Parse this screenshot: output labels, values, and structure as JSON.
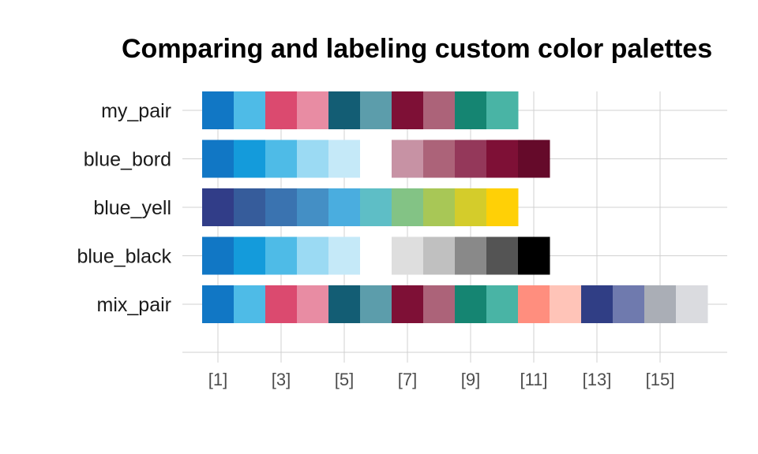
{
  "chart_data": {
    "type": "heatmap",
    "title": "Comparing and labeling custom color palettes",
    "x_tick_labels": [
      "[1]",
      "[3]",
      "[5]",
      "[7]",
      "[9]",
      "[11]",
      "[13]",
      "[15]"
    ],
    "x_tick_positions": [
      1,
      3,
      5,
      7,
      9,
      11,
      13,
      15
    ],
    "xlim": [
      0.5,
      17.5
    ],
    "grid": true,
    "palettes": [
      {
        "name": "my_pair",
        "colors": [
          "#1177C5",
          "#4EBBE7",
          "#DB4A6F",
          "#E88CA3",
          "#135D74",
          "#5C9DAB",
          "#7E1036",
          "#AC6379",
          "#158572",
          "#49B4A5"
        ]
      },
      {
        "name": "blue_bord",
        "colors": [
          "#1177C5",
          "#149BDB",
          "#4EBBE7",
          "#9BDAF3",
          "#C5E9F8",
          "#FFFFFF",
          "#C792A4",
          "#AC6379",
          "#94385A",
          "#7E1036",
          "#650A2A"
        ]
      },
      {
        "name": "blue_yell",
        "colors": [
          "#313D88",
          "#365C9B",
          "#3A73B0",
          "#448FC5",
          "#4AADDF",
          "#5EBEC6",
          "#83C385",
          "#A8C756",
          "#D4CC2B",
          "#FFD006"
        ]
      },
      {
        "name": "blue_black",
        "colors": [
          "#1177C5",
          "#149BDB",
          "#4EBBE7",
          "#9BDAF3",
          "#C5E9F8",
          "#FFFFFF",
          "#DEDEDE",
          "#C0C0C0",
          "#898989",
          "#545454",
          "#000000"
        ]
      },
      {
        "name": "mix_pair",
        "colors": [
          "#1177C5",
          "#4EBBE7",
          "#DB4A6F",
          "#E88CA3",
          "#135D74",
          "#5C9DAB",
          "#7E1036",
          "#AC6379",
          "#158572",
          "#49B4A5",
          "#FF8E7E",
          "#FFC4B8",
          "#303E85",
          "#6F7AAE",
          "#AAAEB6",
          "#DADBDF"
        ]
      }
    ]
  }
}
